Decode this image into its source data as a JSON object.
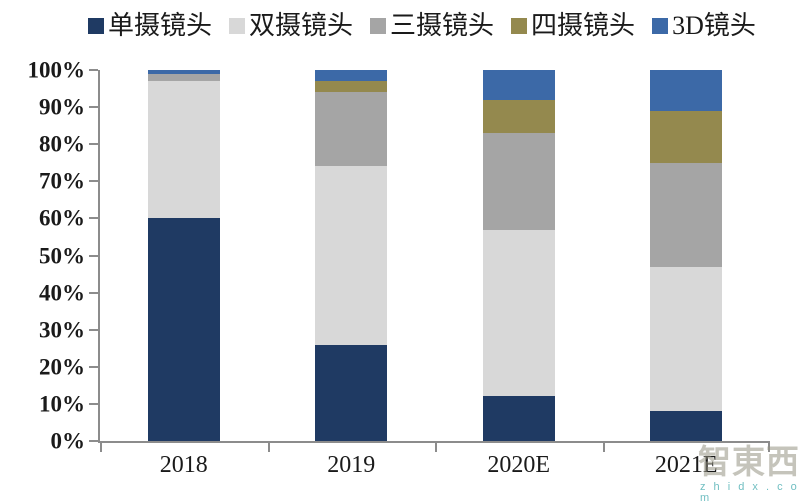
{
  "chart_data": {
    "type": "bar",
    "stacked": true,
    "title": "",
    "xlabel": "",
    "ylabel": "",
    "categories": [
      "2018",
      "2019",
      "2020E",
      "2021E"
    ],
    "series": [
      {
        "name": "单摄镜头",
        "color": "#1F3A63",
        "values": [
          60,
          26,
          12,
          8
        ]
      },
      {
        "name": "双摄镜头",
        "color": "#D8D8D8",
        "values": [
          37,
          48,
          45,
          39
        ]
      },
      {
        "name": "三摄镜头",
        "color": "#A5A5A5",
        "values": [
          2,
          20,
          26,
          28
        ]
      },
      {
        "name": "四摄镜头",
        "color": "#94894E",
        "values": [
          0,
          3,
          9,
          14
        ]
      },
      {
        "name": "3D镜头",
        "color": "#3C69A7",
        "values": [
          1,
          3,
          8,
          11
        ]
      }
    ],
    "y_ticks": [
      "0%",
      "10%",
      "20%",
      "30%",
      "40%",
      "50%",
      "60%",
      "70%",
      "80%",
      "90%",
      "100%"
    ],
    "ylim": [
      0,
      100
    ],
    "unit": "percent",
    "grid": false,
    "legend_position": "top",
    "axis_line_color": "#8C8C8C",
    "label_color": "#1A1A1A"
  },
  "watermark": {
    "text": "智東西",
    "subtext": "z h i d x . c o m"
  }
}
